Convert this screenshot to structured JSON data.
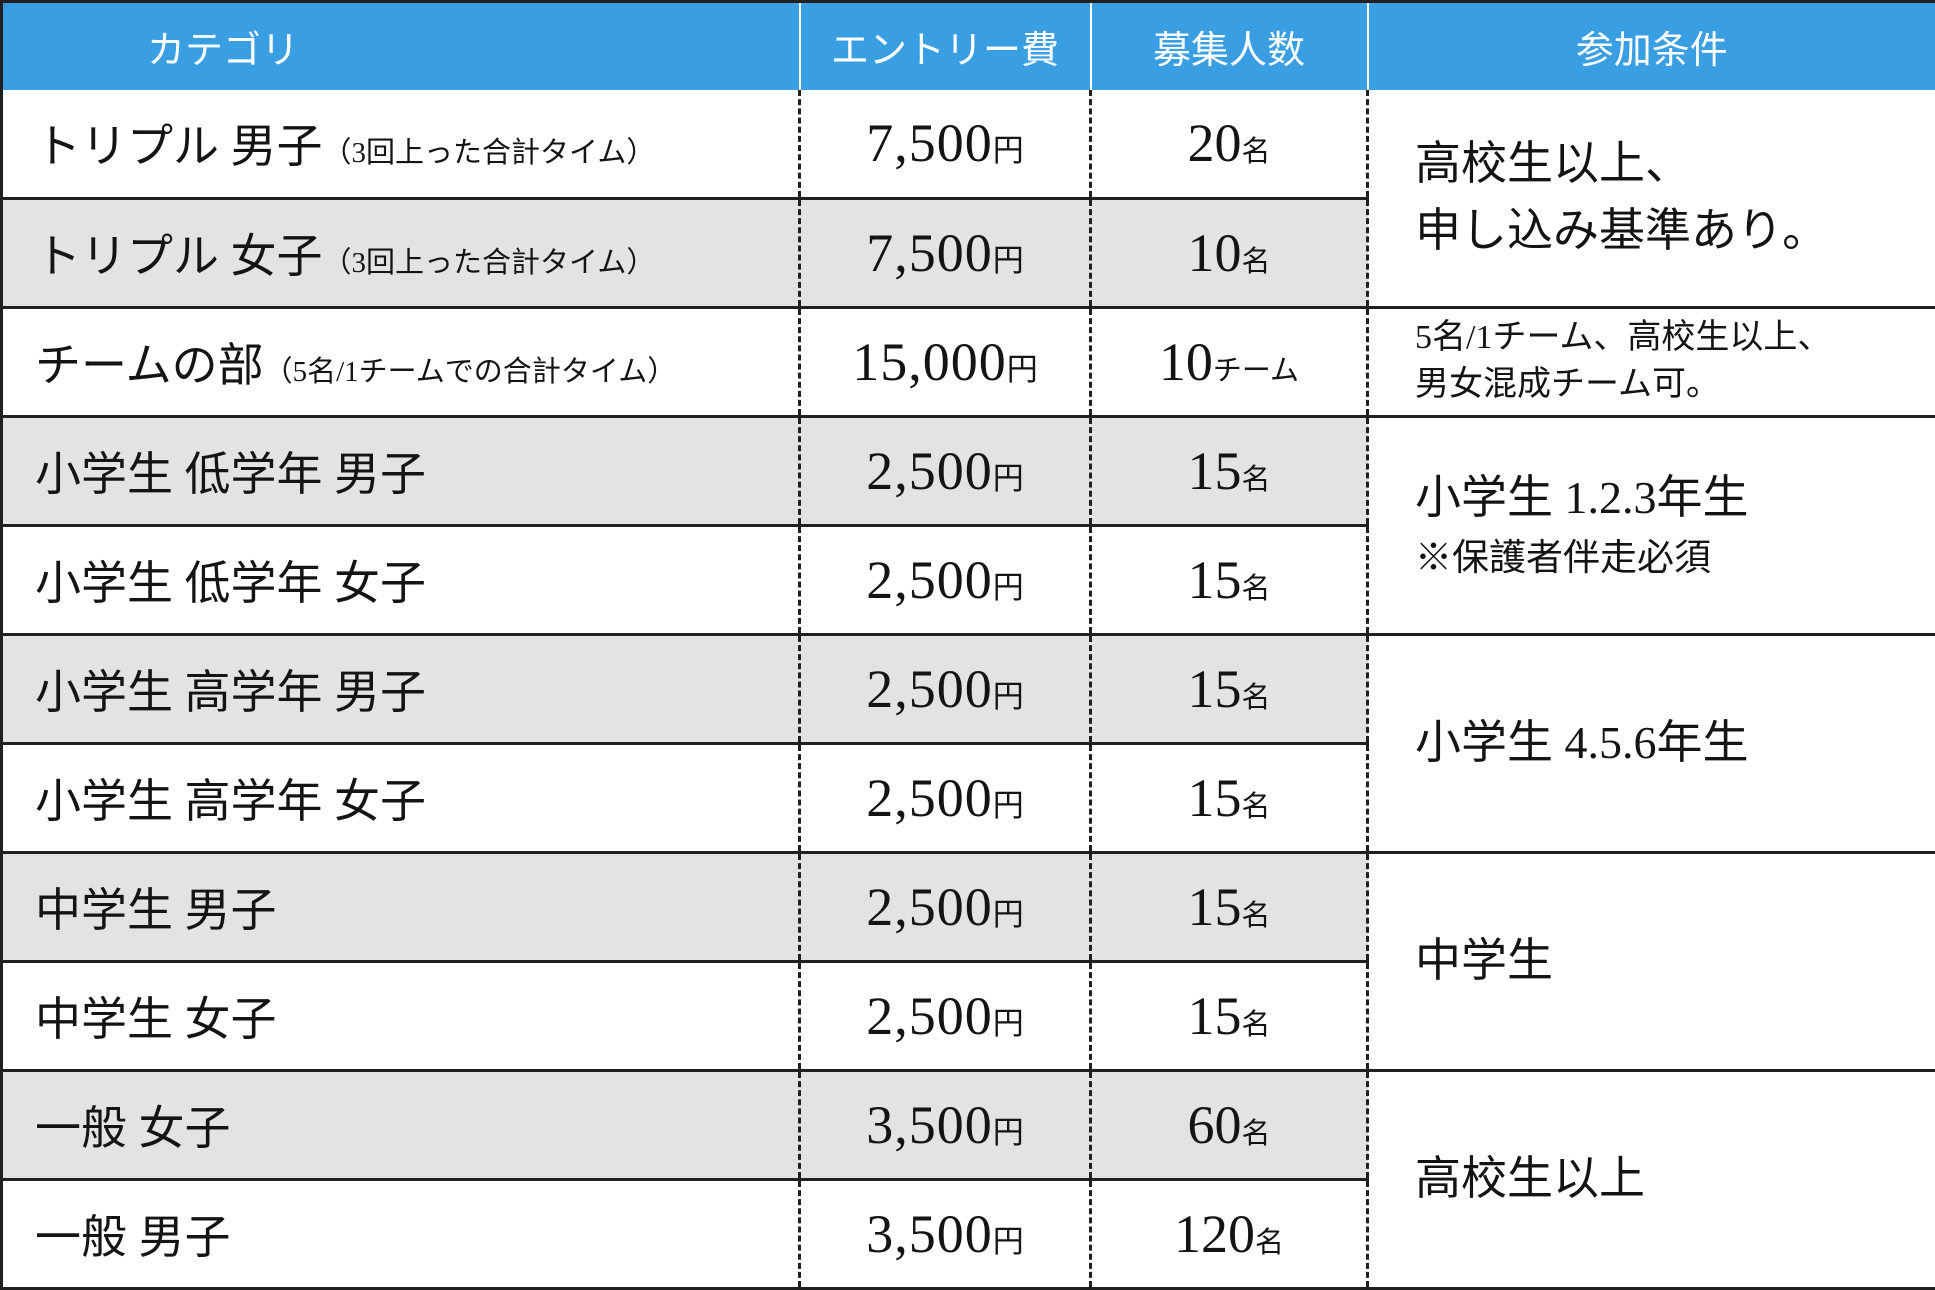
{
  "colors": {
    "header_bg": "#3a9ee2",
    "header_text": "#ffffff",
    "row_alt_bg": "#e3e3e3",
    "border": "#221f1f"
  },
  "table": {
    "headers": [
      "カテゴリ",
      "エントリー費",
      "募集人数",
      "参加条件"
    ],
    "rows": [
      {
        "category": "トリプル 男子",
        "note": "（3回上った合計タイム）",
        "fee": "7,500",
        "fee_unit": "円",
        "capacity": "20",
        "capacity_unit": "名"
      },
      {
        "category": "トリプル 女子",
        "note": "（3回上った合計タイム）",
        "fee": "7,500",
        "fee_unit": "円",
        "capacity": "10",
        "capacity_unit": "名"
      },
      {
        "category": "チームの部",
        "note": "（5名/1チームでの合計タイム）",
        "fee": "15,000",
        "fee_unit": "円",
        "capacity": "10",
        "capacity_unit": "チーム"
      },
      {
        "category": "小学生 低学年 男子",
        "fee": "2,500",
        "fee_unit": "円",
        "capacity": "15",
        "capacity_unit": "名"
      },
      {
        "category": "小学生 低学年 女子",
        "fee": "2,500",
        "fee_unit": "円",
        "capacity": "15",
        "capacity_unit": "名"
      },
      {
        "category": "小学生 高学年 男子",
        "fee": "2,500",
        "fee_unit": "円",
        "capacity": "15",
        "capacity_unit": "名"
      },
      {
        "category": "小学生 高学年 女子",
        "fee": "2,500",
        "fee_unit": "円",
        "capacity": "15",
        "capacity_unit": "名"
      },
      {
        "category": "中学生 男子",
        "fee": "2,500",
        "fee_unit": "円",
        "capacity": "15",
        "capacity_unit": "名"
      },
      {
        "category": "中学生 女子",
        "fee": "2,500",
        "fee_unit": "円",
        "capacity": "15",
        "capacity_unit": "名"
      },
      {
        "category": "一般 女子",
        "fee": "3,500",
        "fee_unit": "円",
        "capacity": "60",
        "capacity_unit": "名"
      },
      {
        "category": "一般 男子",
        "fee": "3,500",
        "fee_unit": "円",
        "capacity": "120",
        "capacity_unit": "名"
      }
    ],
    "conditions": {
      "triple": {
        "line1": "高校生以上、",
        "line2": "申し込み基準あり。"
      },
      "team": {
        "line1": "5名/1チーム、高校生以上、",
        "line2": "男女混成チーム可。"
      },
      "elementary_low": {
        "line1": "小学生 1.2.3年生",
        "line2": "※保護者伴走必須"
      },
      "elementary_high": {
        "line1": "小学生 4.5.6年生"
      },
      "junior_high": {
        "line1": "中学生"
      },
      "general": {
        "line1": "高校生以上"
      }
    }
  }
}
